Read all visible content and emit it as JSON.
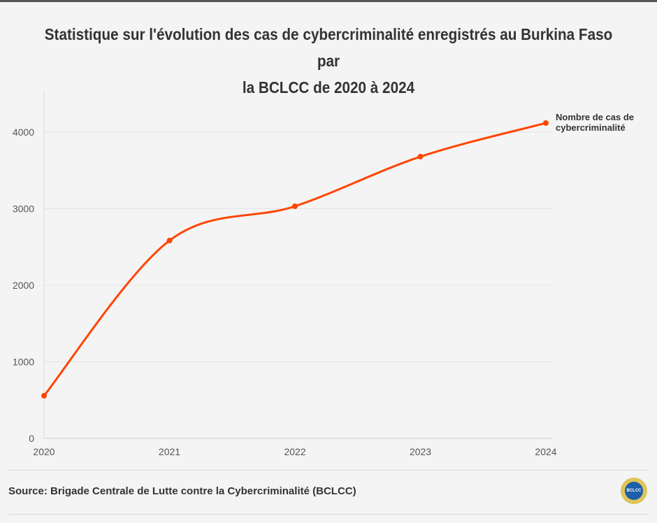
{
  "chart_data": {
    "type": "line",
    "title": "Statistique sur l'évolution des cas de cybercriminalité enregistrés au Burkina Faso par la BCLCC de 2020 à 2024",
    "categories": [
      "2020",
      "2021",
      "2022",
      "2023",
      "2024"
    ],
    "series": [
      {
        "name": "Nombre de cas de cybercriminalité",
        "values": [
          557,
          2584,
          3032,
          3680,
          4119
        ],
        "color": "#ff4500"
      }
    ],
    "yticks": [
      0,
      1000,
      2000,
      3000,
      4000
    ],
    "ylim": [
      0,
      4500
    ],
    "grid": true,
    "legend": "end-of-line label"
  },
  "title_line1": "Statistique sur l'évolution des cas de cybercriminalité enregistrés au Burkina Faso par",
  "title_line2": "la BCLCC de 2020 à 2024",
  "series_label_line1": "Nombre de cas de",
  "series_label_line2": "cybercriminalité",
  "source": "Source: Brigade Centrale de Lutte contre la Cybercriminalité (BCLCC)",
  "logo_text": "BCLCC"
}
